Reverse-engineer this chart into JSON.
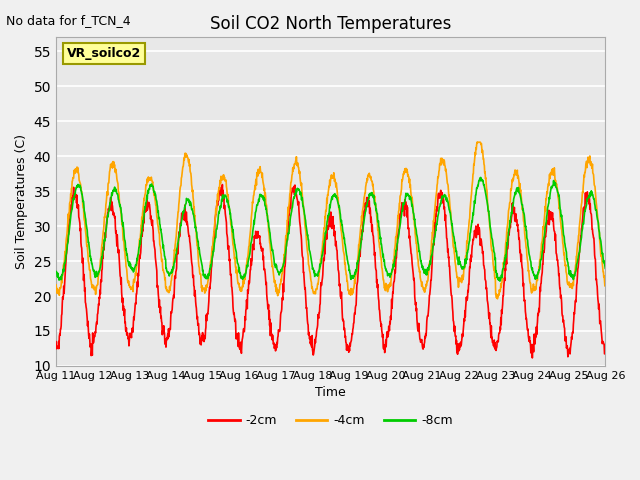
{
  "title": "Soil CO2 North Temperatures",
  "no_data_text": "No data for f_TCN_4",
  "xlabel": "Time",
  "ylabel": "Soil Temperatures (C)",
  "ylim": [
    10,
    57
  ],
  "yticks": [
    10,
    15,
    20,
    25,
    30,
    35,
    40,
    45,
    50,
    55
  ],
  "xlim": [
    0,
    15
  ],
  "xtick_labels": [
    "Aug 11",
    "Aug 12",
    "Aug 13",
    "Aug 14",
    "Aug 15",
    "Aug 16",
    "Aug 17",
    "Aug 18",
    "Aug 19",
    "Aug 20",
    "Aug 21",
    "Aug 22",
    "Aug 23",
    "Aug 24",
    "Aug 25",
    "Aug 26"
  ],
  "legend_label": "VR_soilco2",
  "series_labels": [
    "-2cm",
    "-4cm",
    "-8cm"
  ],
  "series_colors": [
    "#ff0000",
    "#ffa500",
    "#00cc00"
  ],
  "background_color": "#f0f0f0",
  "plot_bg_color": "#e8e8e8",
  "grid_color": "#ffffff",
  "num_cycles": 15
}
